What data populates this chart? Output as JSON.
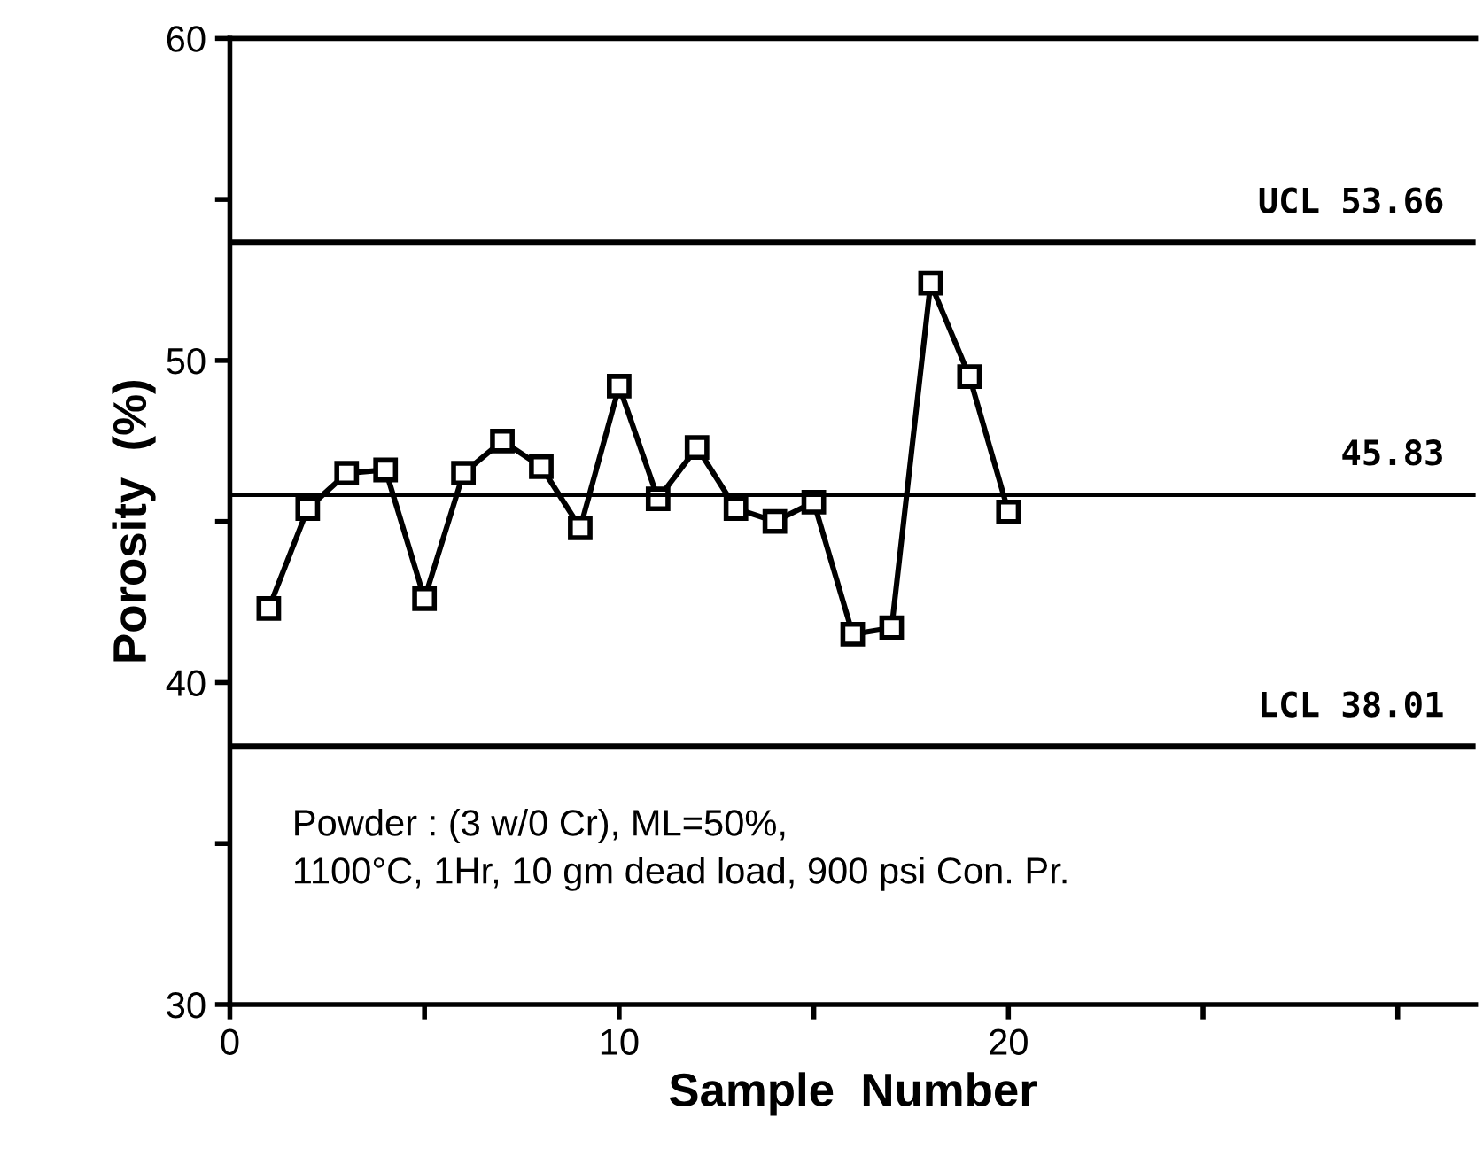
{
  "chart_data": {
    "type": "line",
    "xlabel": "Sample  Number",
    "ylabel": "Porosity  (%)",
    "x": [
      1,
      2,
      3,
      4,
      5,
      6,
      7,
      8,
      9,
      10,
      11,
      12,
      13,
      14,
      15,
      16,
      17,
      18,
      19,
      20
    ],
    "series": [
      {
        "color": "#000000",
        "values": [
          42.3,
          45.4,
          46.5,
          46.6,
          42.6,
          46.5,
          47.5,
          46.7,
          44.8,
          49.2,
          45.7,
          47.3,
          45.4,
          45.0,
          45.6,
          41.5,
          41.7,
          52.4,
          49.5,
          45.3
        ]
      }
    ],
    "xlim": [
      0,
      32
    ],
    "xticks": [
      0,
      {
        "value": 5,
        "label": null
      },
      10,
      {
        "value": 15,
        "label": null
      },
      20,
      {
        "value": 25,
        "label": null
      },
      {
        "value": 30,
        "label": null
      }
    ],
    "ylim": [
      30,
      60
    ],
    "yticks": [
      30,
      {
        "value": 35,
        "label": null
      },
      40,
      {
        "value": 45,
        "label": null
      },
      50,
      {
        "value": 55,
        "label": null
      },
      60
    ],
    "ref_lines": [
      {
        "axis": "y",
        "value": 53.66,
        "label": "UCL 53.66",
        "color": "#000000"
      },
      {
        "axis": "y",
        "value": 45.83,
        "label": "45.83",
        "color": "#000000"
      },
      {
        "axis": "y",
        "value": 38.01,
        "label": "LCL 38.01",
        "color": "#000000"
      }
    ],
    "annotations": [
      "Powder : (3 w/0 Cr), ML=50%,\n1100°C, 1Hr, 10 gm dead load, 900 psi Con. Pr."
    ],
    "marker": "square",
    "line_style": "solid",
    "grid": false
  }
}
